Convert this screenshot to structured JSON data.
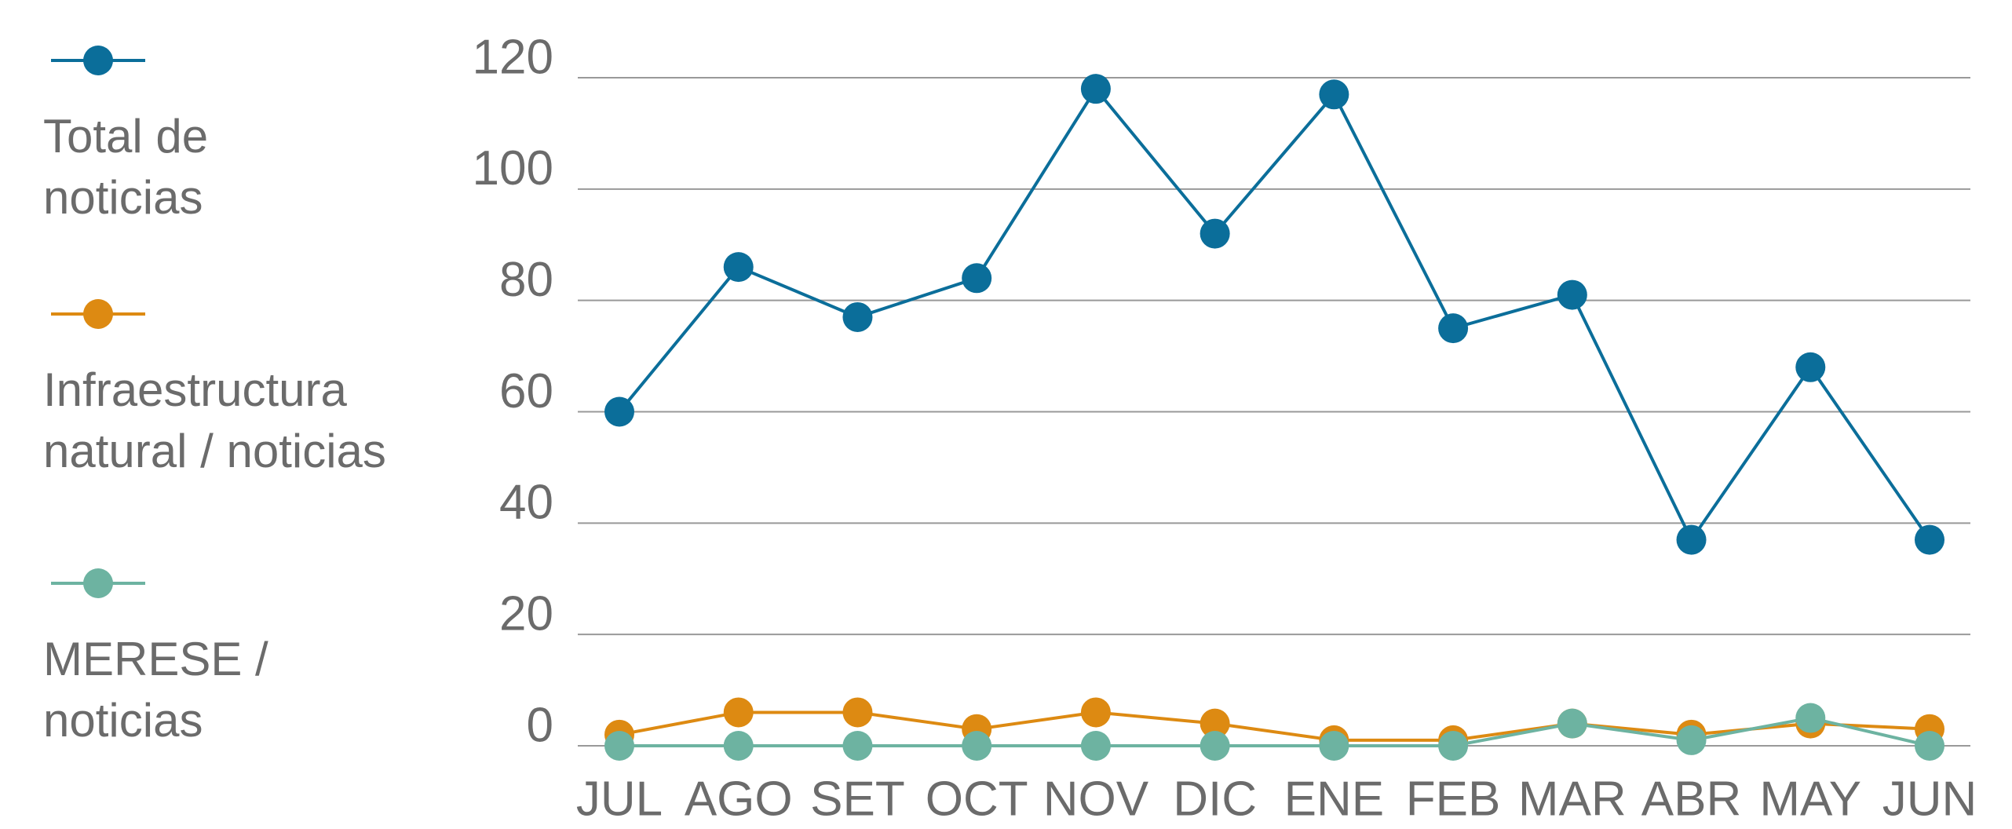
{
  "chart_data": {
    "type": "line",
    "categories": [
      "JUL",
      "AGO",
      "SET",
      "OCT",
      "NOV",
      "DIC",
      "ENE",
      "FEB",
      "MAR",
      "ABR",
      "MAY",
      "JUN"
    ],
    "series": [
      {
        "name": "Total de noticias",
        "color": "#0b6e9a",
        "values": [
          60,
          86,
          77,
          84,
          118,
          92,
          117,
          75,
          81,
          37,
          68,
          37
        ]
      },
      {
        "name": "Infraestructura natural / noticias",
        "color": "#dd8a12",
        "values": [
          2,
          6,
          6,
          3,
          6,
          4,
          1,
          1,
          4,
          2,
          4,
          3
        ]
      },
      {
        "name": "MERESE / noticias",
        "color": "#6db3a1",
        "values": [
          0,
          0,
          0,
          0,
          0,
          0,
          0,
          0,
          4,
          1,
          5,
          0
        ]
      }
    ],
    "ylim": [
      0,
      120
    ],
    "yticks": [
      0,
      20,
      40,
      60,
      80,
      100,
      120
    ],
    "grid": true,
    "legend": "left"
  }
}
